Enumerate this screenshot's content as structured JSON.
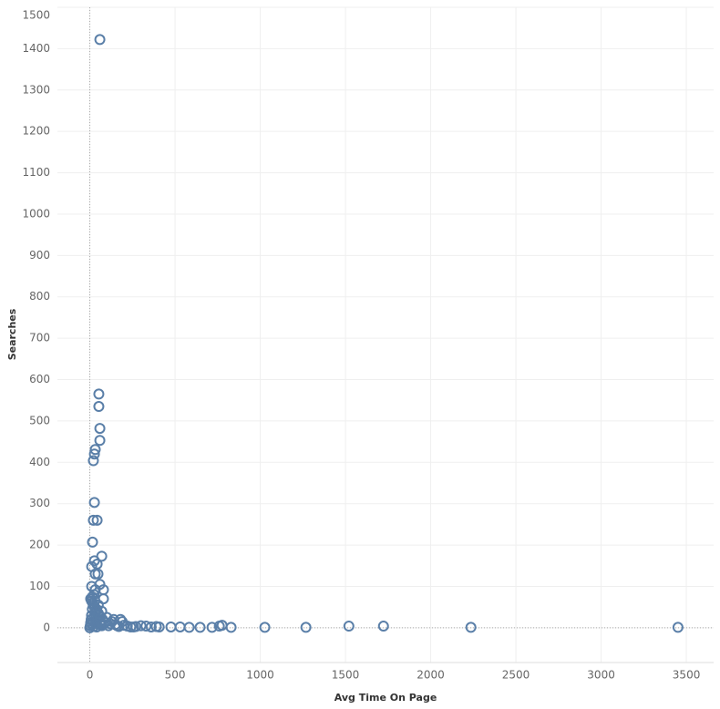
{
  "chart_data": {
    "type": "scatter",
    "x_label": "Avg Time On Page",
    "y_label": "Searches",
    "color": "#5a7fa8",
    "x": [
      59,
      53,
      53,
      59,
      59,
      32,
      27,
      21,
      27,
      21,
      43,
      16,
      70,
      27,
      11,
      43,
      32,
      48,
      11,
      59,
      80,
      32,
      80,
      257,
      407,
      476,
      530,
      583,
      647,
      717,
      760,
      776,
      829,
      1027,
      1268,
      1520,
      1723,
      2236,
      3451,
      0,
      3,
      5,
      8,
      10,
      12,
      15,
      18,
      20,
      22,
      25,
      28,
      30,
      35,
      38,
      40,
      45,
      50,
      55,
      60,
      65,
      70,
      75,
      80,
      90,
      100,
      110,
      120,
      130,
      140,
      150,
      160,
      170,
      180,
      190,
      200,
      220,
      240,
      270,
      300,
      330,
      360,
      390,
      5,
      10,
      15,
      20,
      25,
      30,
      40,
      50,
      60,
      70
    ],
    "values": [
      1422,
      565,
      535,
      482,
      453,
      431,
      420,
      404,
      303,
      260,
      260,
      207,
      173,
      162,
      148,
      154,
      130,
      130,
      100,
      105,
      92,
      92,
      70,
      2,
      2,
      2,
      2,
      1,
      1,
      1,
      4,
      6,
      1,
      1,
      1,
      4,
      4,
      1,
      1,
      0,
      5,
      12,
      20,
      30,
      8,
      45,
      60,
      15,
      3,
      25,
      50,
      35,
      10,
      40,
      2,
      20,
      55,
      30,
      15,
      10,
      5,
      20,
      8,
      12,
      25,
      5,
      10,
      15,
      20,
      8,
      5,
      3,
      20,
      15,
      6,
      4,
      2,
      3,
      5,
      4,
      2,
      3,
      70,
      65,
      75,
      55,
      80,
      65,
      45,
      35,
      25,
      40
    ],
    "xlim": [
      -190,
      3660
    ],
    "ylim": [
      -84,
      1500
    ],
    "xticks": [
      0,
      500,
      1000,
      1500,
      2000,
      2500,
      3000,
      3500
    ],
    "yticks": [
      0,
      100,
      200,
      300,
      400,
      500,
      600,
      700,
      800,
      900,
      1000,
      1100,
      1200,
      1300,
      1400,
      1500
    ],
    "grid": true
  }
}
